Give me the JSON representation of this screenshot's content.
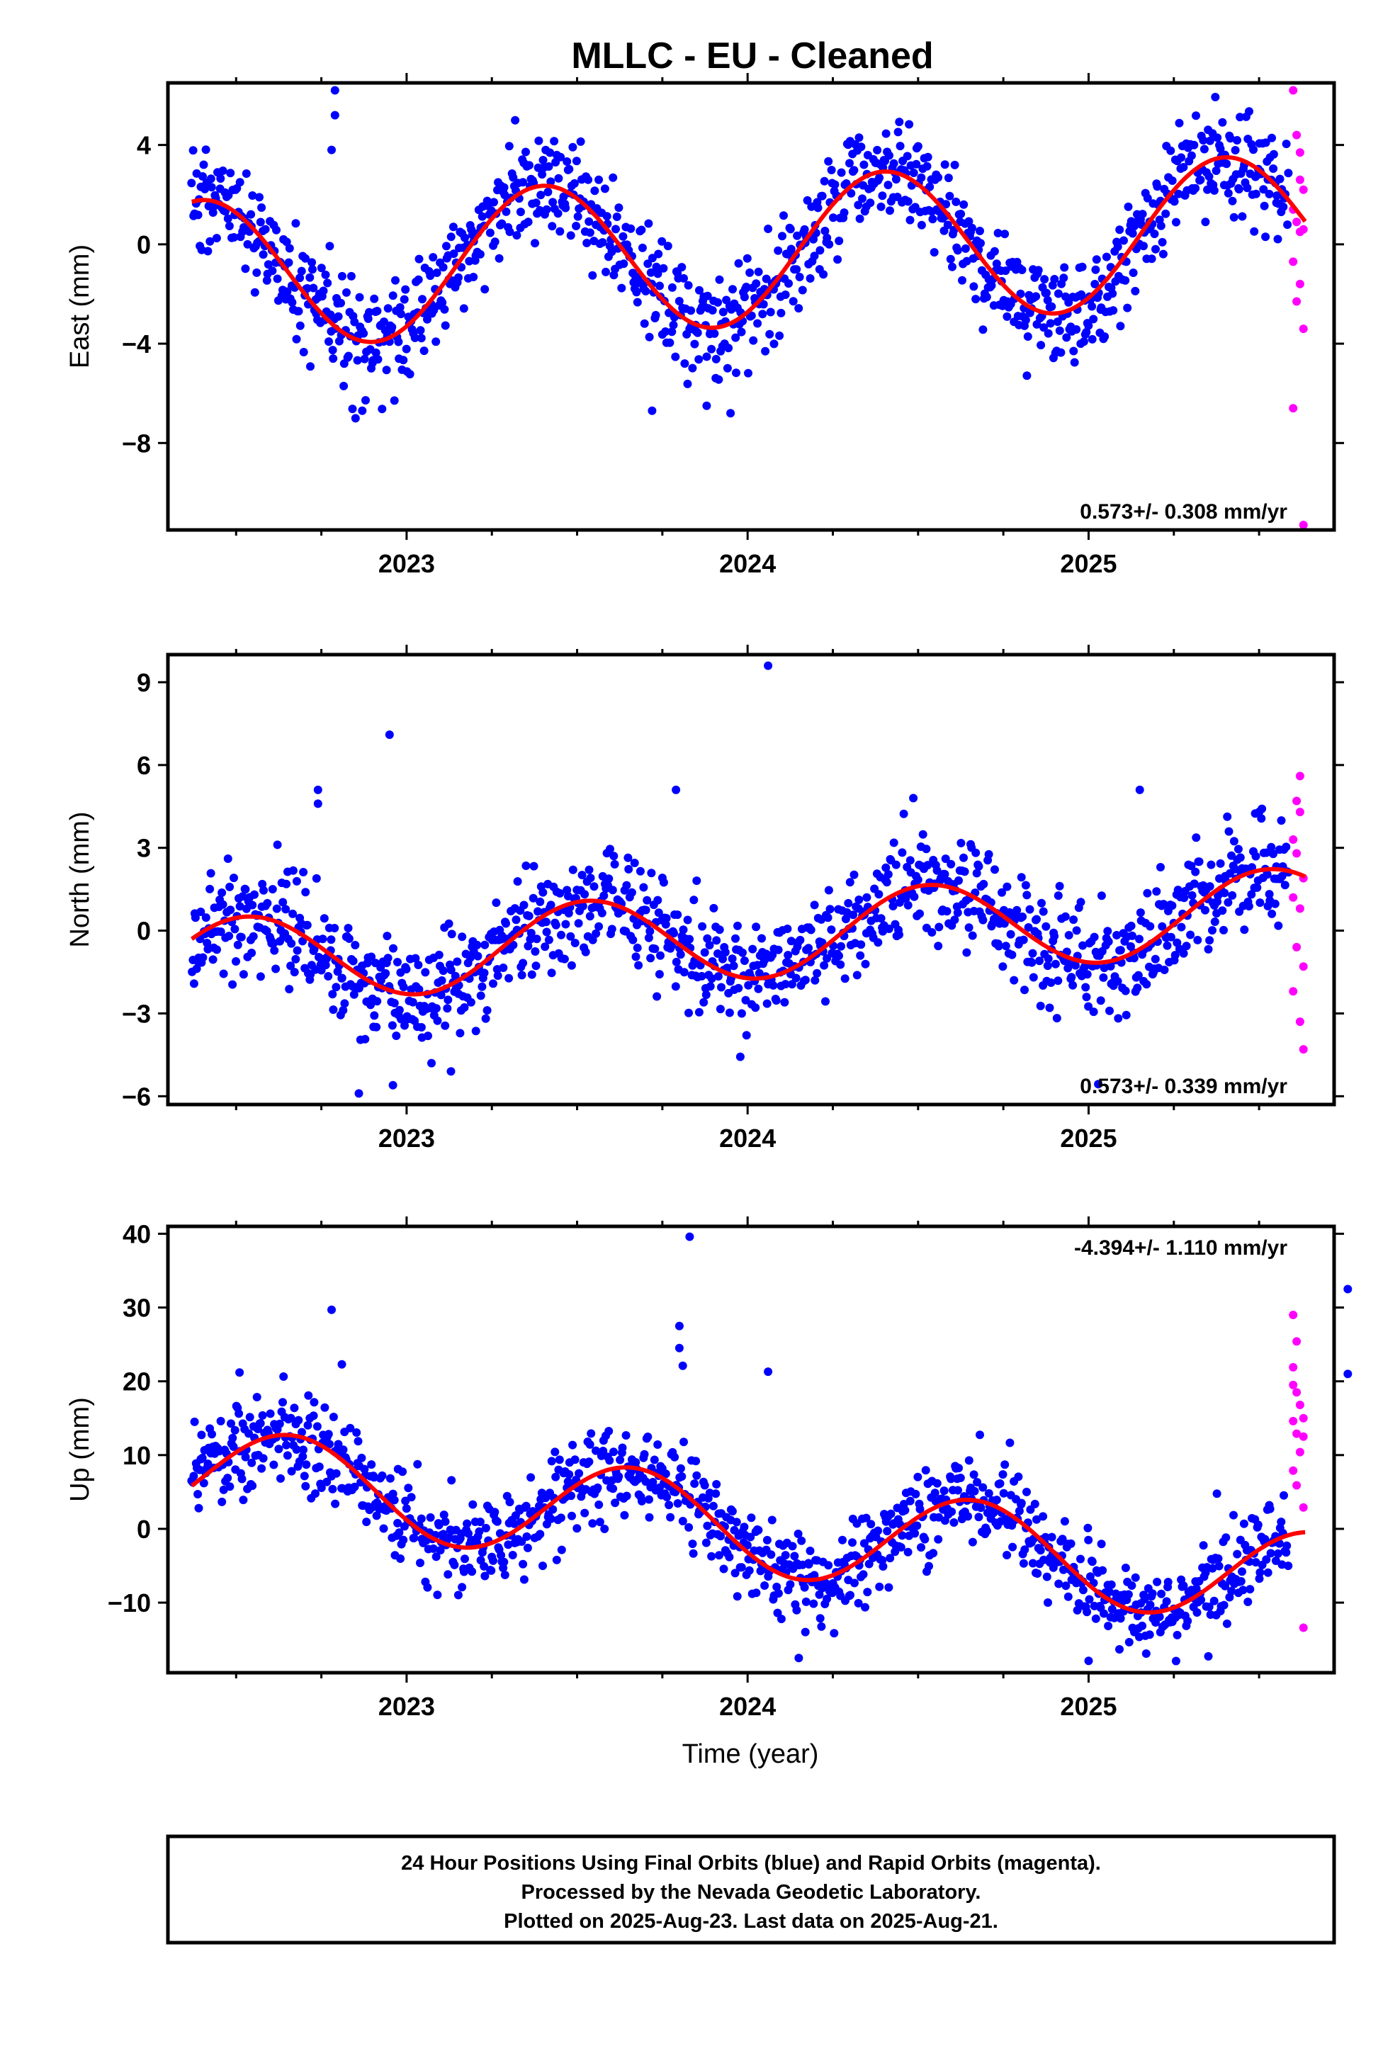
{
  "title": "MLLC  - EU - Cleaned",
  "colors": {
    "final_orbits": "#0000ff",
    "rapid_orbits": "#ff00ff",
    "model_fit": "#ff0000",
    "frame": "#000000"
  },
  "x_axis_label": "Time (year)",
  "caption": [
    "24 Hour Positions Using Final Orbits (blue) and Rapid Orbits (magenta).",
    "Processed by the Nevada Geodetic Laboratory.",
    "Plotted on 2025-Aug-23. Last data on 2025-Aug-21."
  ],
  "chart_data": [
    {
      "type": "scatter",
      "title": "MLLC  - EU - Cleaned",
      "component": "east",
      "ylabel": "East (mm)",
      "xlabel": "",
      "xlim": [
        2022.3,
        2025.72
      ],
      "ylim": [
        -11.5,
        6.5
      ],
      "x_ticks": [
        2023,
        2024,
        2025
      ],
      "y_ticks": [
        -8,
        -4,
        0,
        4
      ],
      "y_tick_labels": [
        "−8",
        "−4",
        "0",
        "4"
      ],
      "grid": false,
      "rate_label": "0.573+/- 0.308 mm/yr",
      "rate_position": "bottom-right",
      "seasonal_fit": {
        "mean": -0.3,
        "trend_mm_per_yr": 0.573,
        "amplitude": 3.0,
        "peak_year_fraction": 0.4,
        "ref_year": 2024.0
      },
      "final_orbits_noise_sd": 1.1,
      "final_orbits_outliers": [
        [
          2022.79,
          6.2
        ],
        [
          2022.79,
          5.2
        ],
        [
          2022.78,
          3.8
        ],
        [
          2022.87,
          -6.7
        ],
        [
          2023.72,
          -6.7
        ],
        [
          2023.95,
          -6.8
        ],
        [
          2023.88,
          -6.5
        ]
      ],
      "rapid_orbits": [
        [
          2025.6,
          6.2
        ],
        [
          2025.61,
          4.4
        ],
        [
          2025.62,
          3.7
        ],
        [
          2025.62,
          2.6
        ],
        [
          2025.63,
          2.2
        ],
        [
          2025.6,
          1.4
        ],
        [
          2025.61,
          0.9
        ],
        [
          2025.62,
          0.5
        ],
        [
          2025.63,
          0.6
        ],
        [
          2025.6,
          -0.7
        ],
        [
          2025.62,
          -1.6
        ],
        [
          2025.61,
          -2.3
        ],
        [
          2025.63,
          -3.4
        ],
        [
          2025.6,
          -6.6
        ],
        [
          2025.63,
          -11.3
        ]
      ]
    },
    {
      "type": "scatter",
      "component": "north",
      "ylabel": "North (mm)",
      "xlabel": "",
      "xlim": [
        2022.3,
        2025.72
      ],
      "ylim": [
        -6.3,
        10.0
      ],
      "x_ticks": [
        2023,
        2024,
        2025
      ],
      "y_ticks": [
        -6,
        -3,
        0,
        3,
        6,
        9
      ],
      "y_tick_labels": [
        "−6",
        "−3",
        "0",
        "3",
        "6",
        "9"
      ],
      "grid": false,
      "rate_label": "0.573+/- 0.339 mm/yr",
      "rate_position": "bottom-right",
      "seasonal_fit": {
        "mean": -0.2,
        "trend_mm_per_yr": 0.573,
        "amplitude": 1.55,
        "peak_year_fraction": 0.53,
        "ref_year": 2024.0
      },
      "final_orbits_noise_sd": 1.0,
      "final_orbits_outliers": [
        [
          2024.06,
          9.6
        ],
        [
          2022.95,
          7.1
        ],
        [
          2022.74,
          5.1
        ],
        [
          2022.74,
          4.6
        ],
        [
          2023.79,
          5.1
        ],
        [
          2025.15,
          5.1
        ],
        [
          2022.86,
          -5.9
        ],
        [
          2022.96,
          -5.6
        ],
        [
          2023.13,
          -5.1
        ]
      ],
      "rapid_orbits": [
        [
          2025.62,
          5.6
        ],
        [
          2025.61,
          4.7
        ],
        [
          2025.62,
          4.3
        ],
        [
          2025.6,
          3.3
        ],
        [
          2025.61,
          2.8
        ],
        [
          2025.63,
          1.9
        ],
        [
          2025.6,
          1.2
        ],
        [
          2025.62,
          0.8
        ],
        [
          2025.61,
          -0.6
        ],
        [
          2025.63,
          -1.3
        ],
        [
          2025.6,
          -2.2
        ],
        [
          2025.62,
          -3.3
        ],
        [
          2025.63,
          -4.3
        ]
      ]
    },
    {
      "type": "scatter",
      "component": "up",
      "ylabel": "Up (mm)",
      "xlabel": "Time (year)",
      "xlim": [
        2022.3,
        2025.72
      ],
      "ylim": [
        -19.5,
        41.0
      ],
      "x_ticks": [
        2023,
        2024,
        2025
      ],
      "y_ticks": [
        -10,
        0,
        10,
        20,
        30,
        40
      ],
      "y_tick_labels": [
        "−10",
        "0",
        "10",
        "20",
        "30",
        "40"
      ],
      "grid": false,
      "rate_label": "-4.394+/- 1.110 mm/yr",
      "rate_position": "top-right",
      "seasonal_fit": {
        "mean": 0.3,
        "trend_mm_per_yr": -4.394,
        "amplitude": 6.5,
        "peak_year_fraction": 0.66,
        "ref_year": 2024.0
      },
      "final_orbits_noise_sd": 3.2,
      "final_orbits_outliers": [
        [
          2023.83,
          39.6
        ],
        [
          2025.76,
          32.5
        ],
        [
          2022.78,
          29.7
        ],
        [
          2023.8,
          27.5
        ],
        [
          2023.8,
          24.5
        ],
        [
          2023.81,
          22.1
        ],
        [
          2024.06,
          21.3
        ],
        [
          2022.51,
          21.2
        ],
        [
          2022.81,
          22.3
        ],
        [
          2025.76,
          21.0
        ],
        [
          2024.15,
          -17.5
        ],
        [
          2025.0,
          -17.9
        ]
      ],
      "rapid_orbits": [
        [
          2025.6,
          29.0
        ],
        [
          2025.61,
          25.4
        ],
        [
          2025.6,
          21.9
        ],
        [
          2025.6,
          19.5
        ],
        [
          2025.61,
          18.5
        ],
        [
          2025.62,
          16.8
        ],
        [
          2025.63,
          15.0
        ],
        [
          2025.6,
          14.6
        ],
        [
          2025.61,
          12.9
        ],
        [
          2025.63,
          12.5
        ],
        [
          2025.62,
          10.4
        ],
        [
          2025.6,
          7.9
        ],
        [
          2025.61,
          5.9
        ],
        [
          2025.63,
          2.9
        ],
        [
          2025.63,
          -13.4
        ]
      ]
    }
  ]
}
